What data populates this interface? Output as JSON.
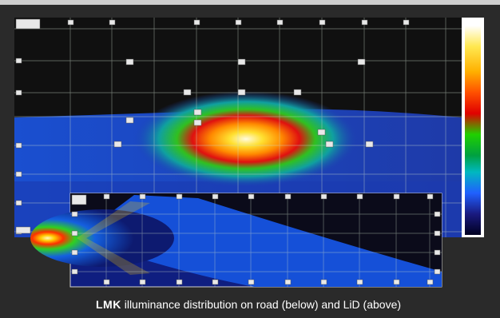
{
  "caption": {
    "brand": "LMK",
    "text": " illuminance distribution on road (below) and LiD (above)"
  },
  "colors": {
    "background": "#1f1f1f",
    "grid_line": "#c8d8c8",
    "gridlabel_bg": "#e8e8e8",
    "scale": [
      "#fff8d0",
      "#ffe850",
      "#ffb000",
      "#ff5000",
      "#e00000",
      "#20d000",
      "#00a040",
      "#00c8c8",
      "#2060ff",
      "#2030c0",
      "#1a1a70",
      "#000020"
    ]
  },
  "icons": [
    "color-scale-bar",
    "grid-label-box"
  ]
}
